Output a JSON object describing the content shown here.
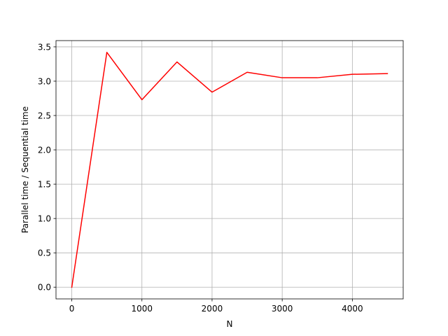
{
  "chart_data": {
    "type": "line",
    "title": "",
    "xlabel": "N",
    "ylabel": "Parallel time / Sequential time",
    "xlim": [
      -225,
      4725
    ],
    "ylim": [
      -0.171,
      3.591
    ],
    "grid": true,
    "legend": "none",
    "x_ticks": [
      0,
      1000,
      2000,
      3000,
      4000
    ],
    "x_tick_labels": [
      "0",
      "1000",
      "2000",
      "3000",
      "4000"
    ],
    "y_ticks": [
      0.0,
      0.5,
      1.0,
      1.5,
      2.0,
      2.5,
      3.0,
      3.5
    ],
    "y_tick_labels": [
      "0.0",
      "0.5",
      "1.0",
      "1.5",
      "2.0",
      "2.5",
      "3.0",
      "3.5"
    ],
    "series": [
      {
        "color": "#ff0000",
        "x": [
          0,
          500,
          1000,
          1500,
          2000,
          2500,
          3000,
          3500,
          4000,
          4500
        ],
        "values": [
          0.0,
          3.42,
          2.73,
          3.28,
          2.84,
          3.13,
          3.05,
          3.05,
          3.1,
          3.11
        ]
      }
    ]
  }
}
